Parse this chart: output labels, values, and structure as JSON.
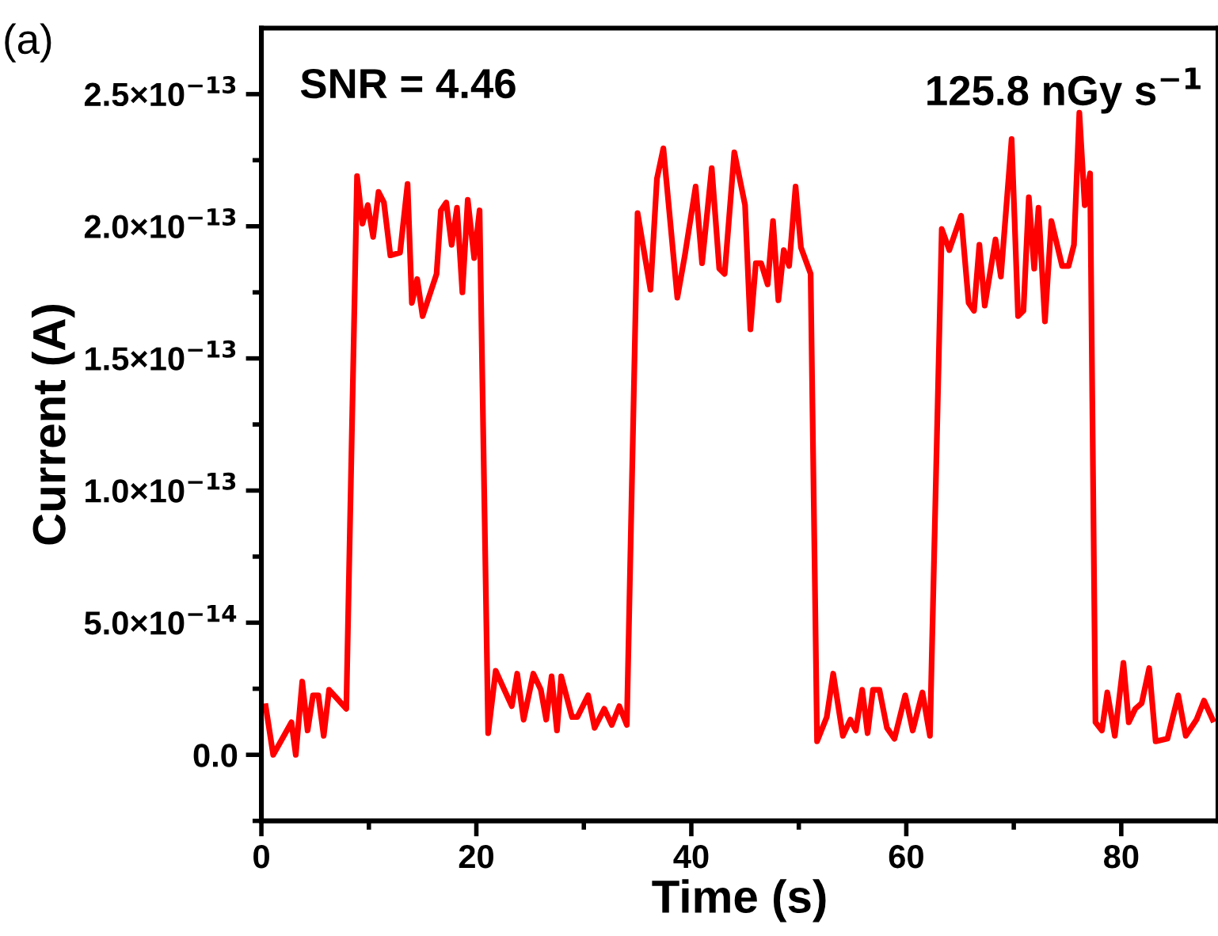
{
  "chart_data": {
    "type": "line",
    "xlabel": "Time (s)",
    "ylabel": "Current (A)",
    "annotations": [
      "(a)",
      "SNR = 4.46",
      "125.8 nGy s$^{−1}$"
    ],
    "xlim": [
      0,
      89
    ],
    "ylim": [
      -2.5e-14,
      2.75e-13
    ],
    "xticks": [
      0,
      {
        "value": 10,
        "label": null
      },
      20,
      {
        "value": 30,
        "label": null
      },
      40,
      {
        "value": 50,
        "label": null
      },
      60,
      {
        "value": 70,
        "label": null
      },
      80
    ],
    "yticks": [
      {
        "value": -2.5e-14,
        "label": null
      },
      {
        "value": 0,
        "label": "0.0"
      },
      {
        "value": 2.5e-14,
        "label": null
      },
      {
        "value": 5e-14,
        "label": "5.0×10$^{−14}$"
      },
      {
        "value": 7.5e-14,
        "label": null
      },
      {
        "value": 1e-13,
        "label": "1.0×10$^{−13}$"
      },
      {
        "value": 1.25e-13,
        "label": null
      },
      {
        "value": 1.5e-13,
        "label": "1.5×10$^{−13}$"
      },
      {
        "value": 1.75e-13,
        "label": null
      },
      {
        "value": 2e-13,
        "label": "2.0×10$^{−13}$"
      },
      {
        "value": 2.25e-13,
        "label": null
      },
      {
        "value": 2.5e-13,
        "label": "2.5×10$^{−13}$"
      }
    ],
    "grid": false,
    "legend": false,
    "marker": "none",
    "line_style": "solid",
    "series": [
      {
        "color": "#ff0000",
        "x": [
          0.4,
          1.1,
          2.8,
          3.2,
          3.8,
          4.3,
          4.8,
          5.3,
          5.8,
          6.3,
          7.0,
          7.9,
          8.9,
          9.4,
          9.9,
          10.4,
          10.9,
          11.4,
          12.0,
          12.9,
          13.6,
          14.0,
          14.5,
          15.0,
          16.3,
          16.7,
          17.2,
          17.7,
          18.2,
          18.7,
          19.2,
          19.8,
          20.3,
          21.1,
          21.8,
          22.6,
          23.3,
          23.8,
          24.4,
          25.3,
          26.0,
          26.5,
          27.0,
          27.5,
          27.9,
          28.9,
          29.4,
          30.4,
          31.0,
          31.9,
          32.6,
          33.3,
          34.0,
          35.0,
          36.2,
          36.8,
          37.4,
          38.7,
          39.4,
          40.4,
          41.0,
          41.9,
          42.6,
          43.1,
          44.0,
          45.0,
          45.5,
          46.0,
          46.5,
          47.1,
          47.6,
          48.1,
          48.6,
          49.1,
          49.7,
          50.2,
          51.1,
          51.7,
          52.6,
          53.2,
          54.1,
          54.8,
          55.3,
          55.9,
          56.4,
          56.9,
          57.5,
          58.2,
          58.9,
          59.9,
          60.6,
          61.5,
          62.2,
          63.3,
          64.0,
          65.1,
          65.8,
          66.3,
          66.8,
          67.3,
          68.3,
          68.8,
          69.8,
          70.4,
          70.9,
          71.4,
          71.9,
          72.3,
          72.9,
          73.5,
          74.5,
          75.1,
          75.6,
          76.1,
          76.6,
          77.1,
          77.6,
          78.2,
          78.7,
          79.4,
          80.2,
          80.7,
          81.3,
          81.9,
          82.6,
          83.2,
          84.3,
          85.3,
          86.0,
          87.0,
          87.7,
          88.5
        ],
        "values": [
          1.84e-14,
          0,
          1.23e-14,
          0,
          2.77e-14,
          9.2e-15,
          2.25e-14,
          2.25e-14,
          7.2e-15,
          2.46e-14,
          2.15e-14,
          1.74e-14,
          2.19e-13,
          2.01e-13,
          2.08e-13,
          1.96e-13,
          2.13e-13,
          2.09e-13,
          1.89e-13,
          1.9e-13,
          2.16e-13,
          1.71e-13,
          1.8e-13,
          1.66e-13,
          1.82e-13,
          2.06e-13,
          2.09e-13,
          1.93e-13,
          2.07e-13,
          1.75e-13,
          2.1e-13,
          1.88e-13,
          2.06e-13,
          8.2e-15,
          3.18e-14,
          2.46e-14,
          1.84e-14,
          3.07e-14,
          1.33e-14,
          3.07e-14,
          2.46e-14,
          1.33e-14,
          2.97e-14,
          9.2e-15,
          2.97e-14,
          1.43e-14,
          1.43e-14,
          2.25e-14,
          1.02e-14,
          1.74e-14,
          1.13e-14,
          1.84e-14,
          1.13e-14,
          2.05e-13,
          1.76e-13,
          2.18e-13,
          2.295e-13,
          1.73e-13,
          1.89e-13,
          2.15e-13,
          1.86e-13,
          2.22e-13,
          1.84e-13,
          1.82e-13,
          2.28e-13,
          2.08e-13,
          1.61e-13,
          1.86e-13,
          1.86e-13,
          1.78e-13,
          2.02e-13,
          1.72e-13,
          1.91e-13,
          1.85e-13,
          2.15e-13,
          1.92e-13,
          1.82e-13,
          5.1e-15,
          1.43e-14,
          3.07e-14,
          7.2e-15,
          1.33e-14,
          9.2e-15,
          2.46e-14,
          8.2e-15,
          2.46e-14,
          2.46e-14,
          1.02e-14,
          6.1e-15,
          2.25e-14,
          9.2e-15,
          2.36e-14,
          7.2e-15,
          1.99e-13,
          1.91e-13,
          2.04e-13,
          1.71e-13,
          1.68e-13,
          1.93e-13,
          1.7e-13,
          1.95e-13,
          1.81e-13,
          2.33e-13,
          1.66e-13,
          1.68e-13,
          2.11e-13,
          1.84e-13,
          2.07e-13,
          1.64e-13,
          2.02e-13,
          1.85e-13,
          1.85e-13,
          1.93e-13,
          2.43e-13,
          2.08e-13,
          2.2e-13,
          1.23e-14,
          9.2e-15,
          2.36e-14,
          7.2e-15,
          3.48e-14,
          1.23e-14,
          1.74e-14,
          1.95e-14,
          3.28e-14,
          5.1e-15,
          6.1e-15,
          2.25e-14,
          7.2e-15,
          1.33e-14,
          2.05e-14,
          1.33e-14
        ]
      }
    ]
  }
}
